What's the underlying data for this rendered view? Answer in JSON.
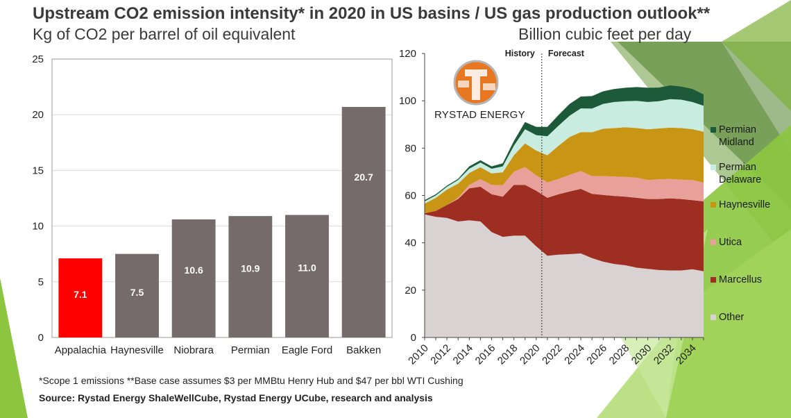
{
  "title": "Upstream CO2 emission intensity* in 2020 in US basins / US gas production outlook**",
  "left_subtitle": "Kg of CO2 per barrel of oil equivalent",
  "right_subtitle": "Billion cubic feet per day",
  "logo_text": "RYSTAD ENERGY",
  "footnote": "*Scope 1 emissions **Base case assumes $3 per MMBtu Henry Hub and $47 per bbl WTI Cushing",
  "source": "Source: Rystad Energy ShaleWellCube, Rystad Energy UCube, research and analysis",
  "colors": {
    "accent_green": "#8cc63f",
    "bar_highlight": "#ff0000",
    "bar_default": "#766b6b",
    "permian_midland": "#1d5a3a",
    "permian_delaware": "#c8ecdf",
    "haynesville": "#c89514",
    "utica": "#e8a09a",
    "marcellus": "#9e2d22",
    "other": "#d8d2d2"
  },
  "chart_data": [
    {
      "type": "bar",
      "categories": [
        "Appalachia",
        "Haynesville",
        "Niobrara",
        "Permian",
        "Eagle Ford",
        "Bakken"
      ],
      "values": [
        7.1,
        7.5,
        10.6,
        10.9,
        11.0,
        20.7
      ],
      "data_labels": [
        "7.1",
        "7.5",
        "10.6",
        "10.9",
        "11.0",
        "20.7"
      ],
      "highlight_index": 0,
      "ylim": [
        0,
        25
      ],
      "yticks": [
        "0",
        "5",
        "10",
        "15",
        "20",
        "25"
      ],
      "grid": true
    },
    {
      "type": "area",
      "stacked": true,
      "x": [
        2010,
        2011,
        2012,
        2013,
        2014,
        2015,
        2016,
        2017,
        2018,
        2019,
        2020,
        2021,
        2022,
        2023,
        2024,
        2025,
        2026,
        2027,
        2028,
        2029,
        2030,
        2031,
        2032,
        2033,
        2034,
        2035
      ],
      "xticks": [
        "2010",
        "2012",
        "2014",
        "2016",
        "2018",
        "2020",
        "2022",
        "2024",
        "2026",
        "2028",
        "2030",
        "2032",
        "2034"
      ],
      "ylim": [
        0,
        120
      ],
      "yticks": [
        "0",
        "20",
        "40",
        "60",
        "80",
        "100",
        "120"
      ],
      "annotations": {
        "history": "History",
        "forecast": "Forecast"
      },
      "divider_x": 2020.5,
      "legend_position": "right",
      "series": [
        {
          "name": "Other",
          "values": [
            52,
            51,
            50.5,
            49,
            49.5,
            49,
            44.5,
            42.5,
            43,
            43,
            38.5,
            34.5,
            35,
            35.2,
            35.5,
            33.5,
            32,
            31,
            30.5,
            29.5,
            29,
            28.5,
            28.3,
            28.3,
            28.8,
            28
          ]
        },
        {
          "name": "Marcellus",
          "values": [
            0.5,
            2.5,
            5.5,
            9.5,
            13.5,
            14.7,
            16,
            17,
            21.5,
            21.5,
            23.5,
            24.5,
            25.5,
            26.5,
            27.3,
            27.2,
            28.2,
            28.8,
            29,
            29.5,
            29.5,
            30,
            30.5,
            30.2,
            29.2,
            29.5
          ]
        },
        {
          "name": "Utica",
          "values": [
            0,
            0,
            0,
            0.5,
            1.5,
            3.2,
            4,
            4.8,
            5.5,
            7.5,
            6.5,
            6.5,
            6.5,
            7,
            7.5,
            7.5,
            8,
            8.2,
            8.3,
            8.5,
            8,
            8.3,
            8.2,
            8.2,
            8.5,
            7.9
          ]
        },
        {
          "name": "Haynesville",
          "values": [
            4,
            5.5,
            6.5,
            6,
            5,
            5,
            4.8,
            5.5,
            7,
            10,
            10.5,
            11.5,
            14,
            16,
            16.5,
            18.5,
            20,
            20.5,
            21,
            21,
            21.5,
            21.5,
            21.7,
            21.8,
            21.5,
            21.5
          ]
        },
        {
          "name": "Permian Delaware",
          "values": [
            1,
            1,
            1.2,
            1.5,
            1.8,
            2,
            2,
            2.5,
            4,
            6,
            6.5,
            8,
            8.5,
            9,
            10,
            10,
            10.5,
            11,
            11,
            11.5,
            11.5,
            11.5,
            12,
            12,
            11.5,
            11
          ]
        },
        {
          "name": "Permian Midland",
          "values": [
            0.5,
            0.5,
            0.5,
            0.5,
            1,
            1,
            1,
            1.3,
            2,
            3,
            3.5,
            4,
            4.5,
            5,
            5,
            5.3,
            5.3,
            5.5,
            5.7,
            5.8,
            6,
            5.8,
            5.8,
            5.5,
            5.5,
            4.8
          ]
        }
      ]
    }
  ]
}
